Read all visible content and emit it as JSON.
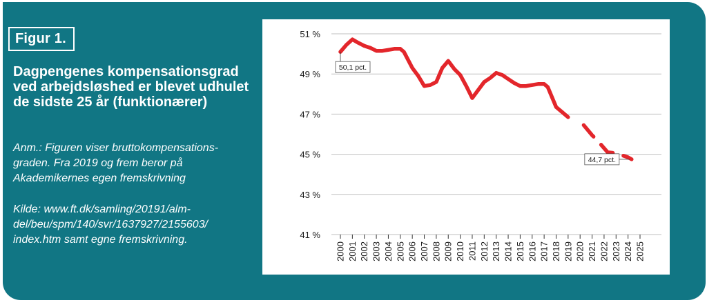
{
  "figure": {
    "badge": "Figur 1.",
    "title": "Dagpengenes kompensationsgrad ved arbejdsløshed er blevet udhulet de sidste 25 år (funktionærer)",
    "note": "Anm.: Figuren viser bruttokompensations-\ngraden. Fra 2019 og frem beror på\nAkademikernes egen fremskrivning",
    "source": "Kilde: www.ft.dk/samling/20191/alm-\ndel/beu/spm/140/svr/1637927/2155603/\nindex.htm samt egne fremskrivning."
  },
  "colors": {
    "panel": "#117684",
    "line": "#e3262b",
    "grid": "#bfbfbf"
  },
  "chart_data": {
    "type": "line",
    "ylim": [
      41,
      51
    ],
    "y_ticks": [
      41,
      43,
      45,
      47,
      49,
      51
    ],
    "y_tick_labels": [
      "41 %",
      "43 %",
      "45 %",
      "47 %",
      "49 %",
      "51 %"
    ],
    "x_ticks": [
      2000,
      2001,
      2002,
      2003,
      2004,
      2005,
      2006,
      2007,
      2008,
      2009,
      2010,
      2011,
      2012,
      2013,
      2014,
      2015,
      2016,
      2017,
      2018,
      2019,
      2020,
      2021,
      2022,
      2023,
      2024,
      2025
    ],
    "x_tick_labels": [
      "2000",
      "2001",
      "2002",
      "2003",
      "2004",
      "2005",
      "2006",
      "2007",
      "2008",
      "2009",
      "2010",
      "2011",
      "2012",
      "2013",
      "2014",
      "2015",
      "2016",
      "2017",
      "2018",
      "2019",
      "2020",
      "2021",
      "2022",
      "2023",
      "2024",
      "2025"
    ],
    "grid": "horizontal",
    "series": [
      {
        "style": "solid",
        "points": [
          [
            2000.0,
            50.1
          ],
          [
            2000.5,
            50.45
          ],
          [
            2001.0,
            50.72
          ],
          [
            2001.5,
            50.55
          ],
          [
            2002.0,
            50.4
          ],
          [
            2002.5,
            50.3
          ],
          [
            2003.0,
            50.15
          ],
          [
            2003.5,
            50.15
          ],
          [
            2004.0,
            50.2
          ],
          [
            2004.5,
            50.25
          ],
          [
            2005.0,
            50.25
          ],
          [
            2005.3,
            50.1
          ],
          [
            2006.0,
            49.3
          ],
          [
            2006.5,
            48.9
          ],
          [
            2007.0,
            48.4
          ],
          [
            2007.5,
            48.45
          ],
          [
            2008.0,
            48.6
          ],
          [
            2008.5,
            49.3
          ],
          [
            2009.0,
            49.65
          ],
          [
            2009.5,
            49.25
          ],
          [
            2010.0,
            48.95
          ],
          [
            2010.5,
            48.4
          ],
          [
            2011.0,
            47.8
          ],
          [
            2011.5,
            48.2
          ],
          [
            2012.0,
            48.6
          ],
          [
            2012.5,
            48.8
          ],
          [
            2013.0,
            49.05
          ],
          [
            2013.5,
            48.95
          ],
          [
            2014.0,
            48.75
          ],
          [
            2014.5,
            48.55
          ],
          [
            2015.0,
            48.4
          ],
          [
            2015.5,
            48.4
          ],
          [
            2016.0,
            48.45
          ],
          [
            2016.5,
            48.5
          ],
          [
            2017.0,
            48.5
          ],
          [
            2017.3,
            48.35
          ],
          [
            2018.0,
            47.35
          ],
          [
            2018.5,
            47.1
          ],
          [
            2019.0,
            46.85
          ]
        ]
      },
      {
        "style": "dashed",
        "points": [
          [
            2020.3,
            46.45
          ],
          [
            2021.0,
            45.95
          ],
          [
            2021.5,
            45.65
          ],
          [
            2022.3,
            45.1
          ],
          [
            2023.0,
            45.05
          ],
          [
            2024.0,
            44.85
          ],
          [
            2024.3,
            44.75
          ]
        ]
      }
    ],
    "annotations": [
      {
        "label": "50,1 pct.",
        "x": 2000,
        "y": 50.1,
        "side": "below"
      },
      {
        "label": "44,7 pct.",
        "x": 2024.3,
        "y": 44.75,
        "side": "left"
      }
    ]
  }
}
